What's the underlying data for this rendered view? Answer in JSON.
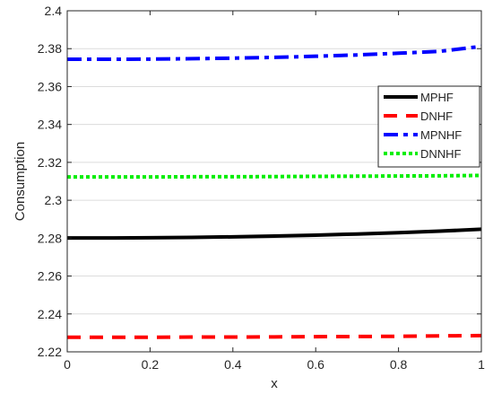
{
  "chart_data": {
    "type": "line",
    "title": "",
    "xlabel": "x",
    "ylabel": "Consumption",
    "xlim": [
      0,
      1
    ],
    "ylim": [
      2.22,
      2.4
    ],
    "x_ticks": [
      0,
      0.2,
      0.4,
      0.6,
      0.8,
      1
    ],
    "x_tick_labels": [
      "0",
      "0.2",
      "0.4",
      "0.6",
      "0.8",
      "1"
    ],
    "y_ticks": [
      2.22,
      2.24,
      2.26,
      2.28,
      2.3,
      2.32,
      2.34,
      2.36,
      2.38,
      2.4
    ],
    "y_tick_labels": [
      "2.22",
      "2.24",
      "2.26",
      "2.28",
      "2.3",
      "2.32",
      "2.34",
      "2.36",
      "2.38",
      "2.4"
    ],
    "grid": "horizontal",
    "legend_position": "right",
    "x": [
      0,
      0.1,
      0.2,
      0.3,
      0.4,
      0.5,
      0.6,
      0.7,
      0.8,
      0.9,
      1
    ],
    "series": [
      {
        "name": "MPHF",
        "color": "#000000",
        "style": "solid",
        "values": [
          2.2801,
          2.2801,
          2.2802,
          2.2804,
          2.2807,
          2.2811,
          2.2816,
          2.2822,
          2.2829,
          2.2837,
          2.2847
        ]
      },
      {
        "name": "DNHF",
        "color": "#ff0000",
        "style": "dashed",
        "values": [
          2.2277,
          2.2277,
          2.2277,
          2.2278,
          2.2278,
          2.2279,
          2.228,
          2.2281,
          2.2282,
          2.2284,
          2.2286
        ]
      },
      {
        "name": "MPNHF",
        "color": "#0000ff",
        "style": "dashdot",
        "values": [
          2.3744,
          2.3744,
          2.3745,
          2.3747,
          2.375,
          2.3754,
          2.376,
          2.3767,
          2.3776,
          2.3786,
          2.3812
        ]
      },
      {
        "name": "DNNHF",
        "color": "#00ee00",
        "style": "dotted",
        "values": [
          2.3123,
          2.3123,
          2.3123,
          2.3124,
          2.3124,
          2.3125,
          2.3126,
          2.3127,
          2.3128,
          2.3129,
          2.3131
        ]
      }
    ]
  }
}
